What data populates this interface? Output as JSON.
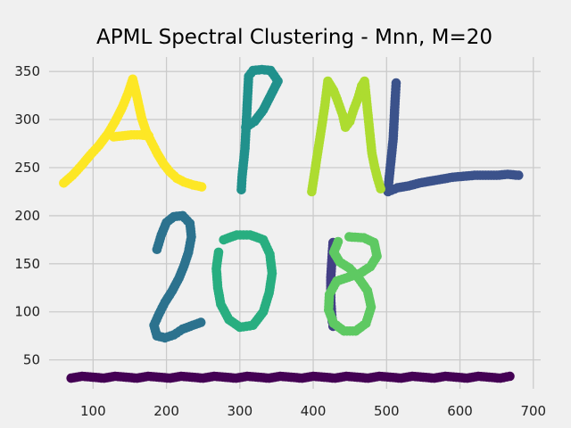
{
  "chart_data": {
    "type": "scatter",
    "title": "APML Spectral Clustering - Mnn, M=20",
    "xlabel": "",
    "ylabel": "",
    "xlim": [
      40,
      710
    ],
    "ylim": [
      20,
      365
    ],
    "grid": true,
    "x_ticks": [
      "100",
      "200",
      "300",
      "400",
      "500",
      "600",
      "700"
    ],
    "y_ticks": [
      "50",
      "100",
      "150",
      "200",
      "250",
      "300",
      "350"
    ],
    "x_tick_values": [
      100,
      200,
      300,
      400,
      500,
      600,
      700
    ],
    "y_tick_values": [
      50,
      100,
      150,
      200,
      250,
      300,
      350
    ],
    "colormap": "viridis",
    "series": [
      {
        "color": "#440154",
        "description": "baseline",
        "points": [
          [
            70,
            31
          ],
          [
            85,
            33
          ],
          [
            100,
            32
          ],
          [
            115,
            31
          ],
          [
            130,
            33
          ],
          [
            145,
            32
          ],
          [
            160,
            31
          ],
          [
            175,
            33
          ],
          [
            190,
            32
          ],
          [
            205,
            31
          ],
          [
            220,
            33
          ],
          [
            235,
            32
          ],
          [
            250,
            31
          ],
          [
            265,
            33
          ],
          [
            280,
            32
          ],
          [
            295,
            31
          ],
          [
            310,
            33
          ],
          [
            325,
            32
          ],
          [
            340,
            31
          ],
          [
            355,
            33
          ],
          [
            370,
            32
          ],
          [
            385,
            31
          ],
          [
            400,
            33
          ],
          [
            415,
            32
          ],
          [
            430,
            31
          ],
          [
            445,
            33
          ],
          [
            460,
            32
          ],
          [
            475,
            31
          ],
          [
            490,
            33
          ],
          [
            505,
            32
          ],
          [
            520,
            31
          ],
          [
            535,
            33
          ],
          [
            550,
            32
          ],
          [
            565,
            31
          ],
          [
            580,
            33
          ],
          [
            595,
            32
          ],
          [
            610,
            31
          ],
          [
            625,
            33
          ],
          [
            640,
            32
          ],
          [
            655,
            31
          ],
          [
            668,
            33
          ]
        ]
      },
      {
        "color": "#3b528b",
        "description": "L",
        "points": [
          [
            513,
            338
          ],
          [
            512,
            325
          ],
          [
            511,
            310
          ],
          [
            510,
            295
          ],
          [
            509,
            280
          ],
          [
            507,
            265
          ],
          [
            505,
            250
          ],
          [
            503,
            235
          ],
          [
            502,
            225
          ],
          [
            515,
            229
          ],
          [
            530,
            231
          ],
          [
            545,
            234
          ],
          [
            560,
            236
          ],
          [
            575,
            238
          ],
          [
            590,
            240
          ],
          [
            605,
            241
          ],
          [
            620,
            242
          ],
          [
            635,
            242
          ],
          [
            650,
            242
          ],
          [
            665,
            243
          ],
          [
            680,
            242
          ]
        ]
      },
      {
        "color": "#433e85",
        "description": "1",
        "points": [
          [
            427,
            172
          ],
          [
            426,
            160
          ],
          [
            425,
            148
          ],
          [
            424,
            136
          ],
          [
            424,
            124
          ],
          [
            424,
            112
          ],
          [
            425,
            100
          ],
          [
            426,
            90
          ],
          [
            427,
            85
          ]
        ]
      },
      {
        "color": "#2c728e",
        "description": "2",
        "points": [
          [
            187,
            165
          ],
          [
            193,
            180
          ],
          [
            200,
            193
          ],
          [
            210,
            199
          ],
          [
            222,
            200
          ],
          [
            232,
            192
          ],
          [
            234,
            178
          ],
          [
            230,
            162
          ],
          [
            224,
            148
          ],
          [
            217,
            135
          ],
          [
            208,
            122
          ],
          [
            198,
            110
          ],
          [
            190,
            98
          ],
          [
            183,
            86
          ],
          [
            187,
            75
          ],
          [
            198,
            73
          ],
          [
            210,
            76
          ],
          [
            222,
            82
          ],
          [
            236,
            86
          ],
          [
            247,
            89
          ]
        ]
      },
      {
        "color": "#21918c",
        "description": "P",
        "points": [
          [
            302,
            227
          ],
          [
            303,
            240
          ],
          [
            305,
            255
          ],
          [
            307,
            270
          ],
          [
            308,
            285
          ],
          [
            309,
            300
          ],
          [
            310,
            315
          ],
          [
            311,
            330
          ],
          [
            312,
            345
          ],
          [
            318,
            351
          ],
          [
            330,
            352
          ],
          [
            342,
            351
          ],
          [
            352,
            340
          ],
          [
            342,
            325
          ],
          [
            332,
            310
          ],
          [
            320,
            298
          ],
          [
            308,
            292
          ]
        ]
      },
      {
        "color": "#28ae80",
        "description": "0",
        "points": [
          [
            278,
            175
          ],
          [
            296,
            180
          ],
          [
            314,
            180
          ],
          [
            332,
            175
          ],
          [
            341,
            160
          ],
          [
            344,
            140
          ],
          [
            340,
            120
          ],
          [
            332,
            100
          ],
          [
            318,
            86
          ],
          [
            300,
            84
          ],
          [
            285,
            92
          ],
          [
            274,
            108
          ],
          [
            270,
            125
          ],
          [
            268,
            145
          ],
          [
            271,
            162
          ]
        ]
      },
      {
        "color": "#5ec962",
        "description": "8",
        "points": [
          [
            449,
            178
          ],
          [
            469,
            177
          ],
          [
            483,
            172
          ],
          [
            487,
            158
          ],
          [
            478,
            147
          ],
          [
            464,
            140
          ],
          [
            448,
            136
          ],
          [
            432,
            132
          ],
          [
            422,
            118
          ],
          [
            421,
            102
          ],
          [
            428,
            88
          ],
          [
            442,
            80
          ],
          [
            458,
            80
          ],
          [
            472,
            88
          ],
          [
            479,
            105
          ],
          [
            474,
            122
          ],
          [
            462,
            135
          ],
          [
            450,
            145
          ],
          [
            436,
            152
          ],
          [
            428,
            162
          ],
          [
            434,
            173
          ]
        ]
      },
      {
        "color": "#addc30",
        "description": "M",
        "points": [
          [
            398,
            225
          ],
          [
            401,
            240
          ],
          [
            404,
            255
          ],
          [
            407,
            270
          ],
          [
            410,
            285
          ],
          [
            413,
            300
          ],
          [
            416,
            315
          ],
          [
            418,
            328
          ],
          [
            420,
            340
          ],
          [
            428,
            330
          ],
          [
            434,
            318
          ],
          [
            440,
            305
          ],
          [
            444,
            292
          ],
          [
            450,
            298
          ],
          [
            455,
            310
          ],
          [
            461,
            322
          ],
          [
            466,
            335
          ],
          [
            470,
            340
          ],
          [
            472,
            325
          ],
          [
            474,
            310
          ],
          [
            476,
            295
          ],
          [
            478,
            280
          ],
          [
            480,
            265
          ],
          [
            484,
            250
          ],
          [
            488,
            238
          ],
          [
            492,
            228
          ]
        ]
      },
      {
        "color": "#fde725",
        "description": "A",
        "points": [
          [
            60,
            234
          ],
          [
            72,
            242
          ],
          [
            84,
            252
          ],
          [
            96,
            263
          ],
          [
            108,
            273
          ],
          [
            120,
            285
          ],
          [
            130,
            298
          ],
          [
            140,
            313
          ],
          [
            148,
            328
          ],
          [
            154,
            342
          ],
          [
            158,
            330
          ],
          [
            162,
            316
          ],
          [
            166,
            302
          ],
          [
            172,
            288
          ],
          [
            180,
            276
          ],
          [
            188,
            264
          ],
          [
            196,
            254
          ],
          [
            204,
            246
          ],
          [
            214,
            239
          ],
          [
            224,
            235
          ],
          [
            236,
            232
          ],
          [
            248,
            230
          ],
          [
            128,
            282
          ],
          [
            140,
            283
          ],
          [
            152,
            284
          ],
          [
            164,
            284
          ],
          [
            176,
            283
          ]
        ]
      }
    ]
  }
}
